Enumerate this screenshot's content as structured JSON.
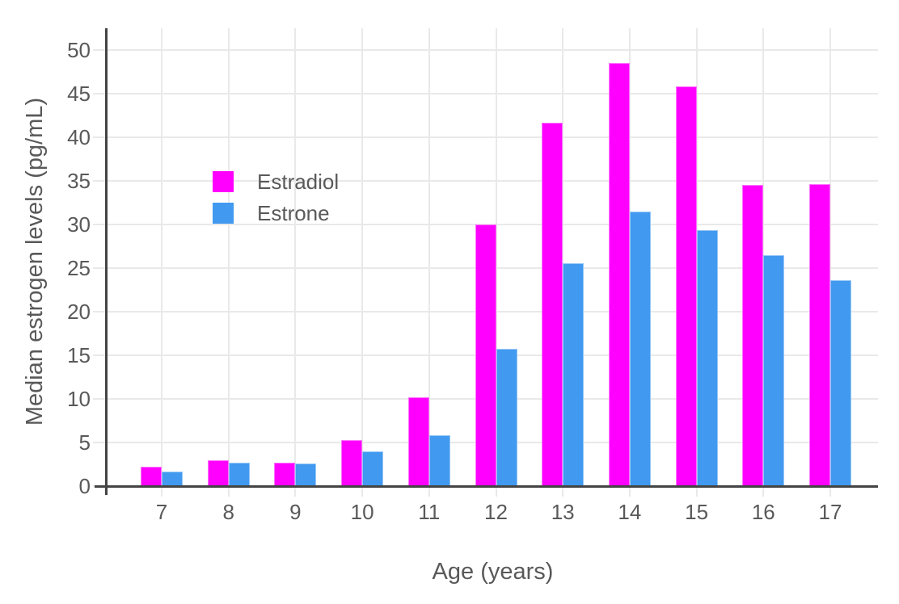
{
  "chart_data": {
    "type": "bar",
    "title": "",
    "xlabel": "Age (years)",
    "ylabel": "Median estrogen levels (pg/mL)",
    "categories": [
      "7",
      "8",
      "9",
      "10",
      "11",
      "12",
      "13",
      "14",
      "15",
      "16",
      "17"
    ],
    "series": [
      {
        "name": "Estradiol",
        "color": "#FF00FF",
        "values": [
          2.2,
          3.0,
          2.7,
          5.3,
          10.2,
          30.0,
          41.6,
          48.5,
          45.8,
          34.5,
          34.6
        ]
      },
      {
        "name": "Estrone",
        "color": "#4199F0",
        "values": [
          1.7,
          2.7,
          2.6,
          4.0,
          5.8,
          15.7,
          25.5,
          31.5,
          29.3,
          26.5,
          23.6
        ]
      }
    ],
    "ylim": [
      0,
      50
    ],
    "yticks": [
      0,
      5,
      10,
      15,
      20,
      25,
      30,
      35,
      40,
      45,
      50
    ],
    "grid": true,
    "legend_position": "inside-upper-left"
  },
  "colors": {
    "grid": "#E9E9E9",
    "axis": "#444444",
    "text": "#595959"
  }
}
